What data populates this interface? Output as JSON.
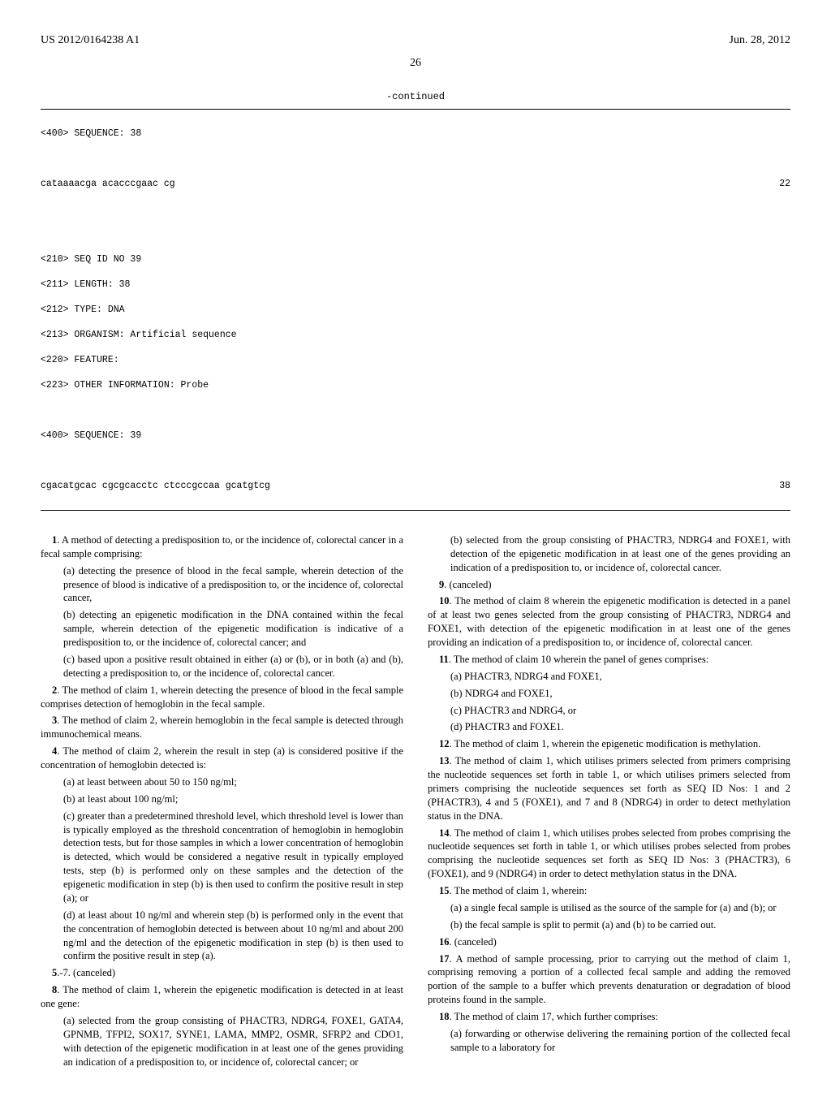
{
  "header": {
    "pub_number": "US 2012/0164238 A1",
    "date": "Jun. 28, 2012"
  },
  "page_number": "26",
  "continued_label": "-continued",
  "seq": {
    "line1": "<400> SEQUENCE: 38",
    "line2_left": "cataaaacga acacccgaac cg",
    "line2_right": "22",
    "line3": "<210> SEQ ID NO 39",
    "line4": "<211> LENGTH: 38",
    "line5": "<212> TYPE: DNA",
    "line6": "<213> ORGANISM: Artificial sequence",
    "line7": "<220> FEATURE:",
    "line8": "<223> OTHER INFORMATION: Probe",
    "line9": "<400> SEQUENCE: 39",
    "line10_left": "cgacatgcac cgcgcacctc ctcccgccaa gcatgtcg",
    "line10_right": "38"
  },
  "claims": {
    "c1_lead": "1",
    "c1": ". A method of detecting a predisposition to, or the incidence of, colorectal cancer in a fecal sample comprising:",
    "c1a": "(a) detecting the presence of blood in the fecal sample, wherein detection of the presence of blood is indicative of a predisposition to, or the incidence of, colorectal cancer,",
    "c1b": "(b) detecting an epigenetic modification in the DNA contained within the fecal sample, wherein detection of the epigenetic modification is indicative of a predisposition to, or the incidence of, colorectal cancer; and",
    "c1c": "(c) based upon a positive result obtained in either (a) or (b), or in both (a) and (b), detecting a predisposition to, or the incidence of, colorectal cancer.",
    "c2_lead": "2",
    "c2": ". The method of claim 1, wherein detecting the presence of blood in the fecal sample comprises detection of hemoglobin in the fecal sample.",
    "c3_lead": "3",
    "c3": ". The method of claim 2, wherein hemoglobin in the fecal sample is detected through immunochemical means.",
    "c4_lead": "4",
    "c4": ". The method of claim 2, wherein the result in step (a) is considered positive if the concentration of hemoglobin detected is:",
    "c4a": "(a) at least between about 50 to 150 ng/ml;",
    "c4b": "(b) at least about 100 ng/ml;",
    "c4c": "(c) greater than a predetermined threshold level, which threshold level is lower than is typically employed as the threshold concentration of hemoglobin in hemoglobin detection tests, but for those samples in which a lower concentration of hemoglobin is detected, which would be considered a negative result in typically employed tests, step (b) is performed only on these samples and the detection of the epigenetic modification in step (b) is then used to confirm the positive result in step (a); or",
    "c4d": "(d) at least about 10 ng/ml and wherein step (b) is performed only in the event that the concentration of hemoglobin detected is between about 10 ng/ml and about 200 ng/ml and the detection of the epigenetic modification in step (b) is then used to confirm the positive result in step (a).",
    "c5_lead": "5",
    "c5": ".-7. (canceled)",
    "c8_lead": "8",
    "c8": ". The method of claim 1, wherein the epigenetic modification is detected in at least one gene:",
    "c8a": "(a) selected from the group consisting of PHACTR3, NDRG4, FOXE1, GATA4, GPNMB, TFPI2, SOX17, SYNE1, LAMA, MMP2, OSMR, SFRP2 and CDO1, with detection of the epigenetic modification in at least one of the genes providing an indication of a predisposition to, or incidence of, colorectal cancer; or",
    "c8b": "(b) selected from the group consisting of PHACTR3, NDRG4 and FOXE1, with detection of the epigenetic modification in at least one of the genes providing an indication of a predisposition to, or incidence of, colorectal cancer.",
    "c9_lead": "9",
    "c9": ". (canceled)",
    "c10_lead": "10",
    "c10": ". The method of claim 8 wherein the epigenetic modification is detected in a panel of at least two genes selected from the group consisting of PHACTR3, NDRG4 and FOXE1, with detection of the epigenetic modification in at least one of the genes providing an indication of a predisposition to, or incidence of, colorectal cancer.",
    "c11_lead": "11",
    "c11": ". The method of claim 10 wherein the panel of genes comprises:",
    "c11a": "(a) PHACTR3, NDRG4 and FOXE1,",
    "c11b": "(b) NDRG4 and FOXE1,",
    "c11c": "(c) PHACTR3 and NDRG4, or",
    "c11d": "(d) PHACTR3 and FOXE1.",
    "c12_lead": "12",
    "c12": ". The method of claim 1, wherein the epigenetic modification is methylation.",
    "c13_lead": "13",
    "c13": ". The method of claim 1, which utilises primers selected from primers comprising the nucleotide sequences set forth in table 1, or which utilises primers selected from primers comprising the nucleotide sequences set forth as SEQ ID Nos: 1 and 2 (PHACTR3), 4 and 5 (FOXE1), and 7 and 8 (NDRG4) in order to detect methylation status in the DNA.",
    "c14_lead": "14",
    "c14": ". The method of claim 1, which utilises probes selected from probes comprising the nucleotide sequences set forth in table 1, or which utilises probes selected from probes comprising the nucleotide sequences set forth as SEQ ID Nos: 3 (PHACTR3), 6 (FOXE1), and 9 (NDRG4) in order to detect methylation status in the DNA.",
    "c15_lead": "15",
    "c15": ". The method of claim 1, wherein:",
    "c15a": "(a) a single fecal sample is utilised as the source of the sample for (a) and (b); or",
    "c15b": "(b) the fecal sample is split to permit (a) and (b) to be carried out.",
    "c16_lead": "16",
    "c16": ". (canceled)",
    "c17_lead": "17",
    "c17": ". A method of sample processing, prior to carrying out the method of claim 1, comprising removing a portion of a collected fecal sample and adding the removed portion of the sample to a buffer which prevents denaturation or degradation of blood proteins found in the sample.",
    "c18_lead": "18",
    "c18": ". The method of claim 17, which further comprises:",
    "c18a": "(a) forwarding or otherwise delivering the remaining portion of the collected fecal sample to a laboratory for"
  }
}
